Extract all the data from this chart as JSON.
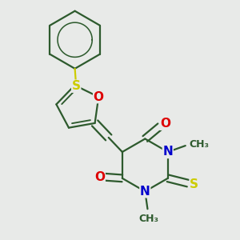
{
  "background_color": "#e8eae8",
  "bond_color": "#2d5a2d",
  "atom_colors": {
    "O": "#dd0000",
    "N": "#0000cc",
    "S": "#cccc00",
    "C": "#2d5a2d"
  },
  "line_width": 1.6,
  "font_size": 10,
  "figsize": [
    3.0,
    3.0
  ],
  "dpi": 100
}
